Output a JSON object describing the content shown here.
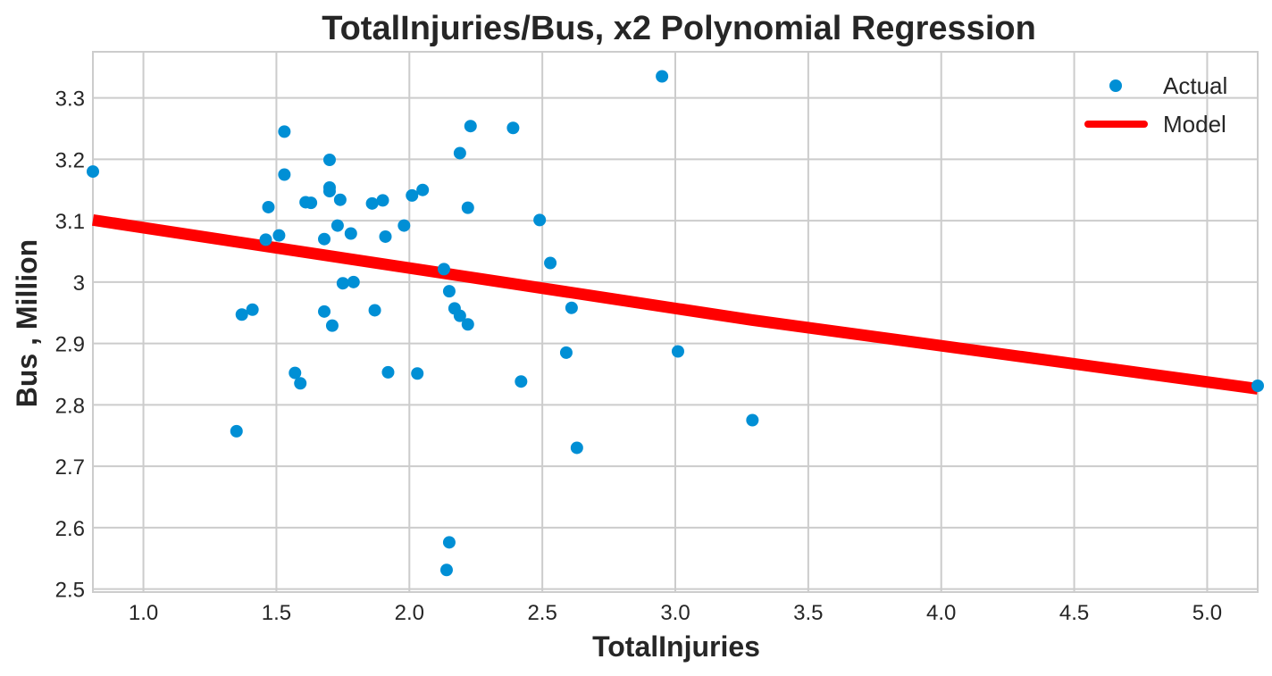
{
  "chart_data": {
    "type": "scatter",
    "title": "TotalInjuries/Bus, x2 Polynomial Regression",
    "xlabel": "TotalInjuries",
    "ylabel": "Bus , Million",
    "xlim": [
      0.81,
      5.19
    ],
    "ylim": [
      2.495,
      3.375
    ],
    "x_ticks": [
      1.0,
      1.5,
      2.0,
      2.5,
      3.0,
      3.5,
      4.0,
      4.5,
      5.0
    ],
    "x_tick_labels": [
      "1.0",
      "1.5",
      "2.0",
      "2.5",
      "3.0",
      "3.5",
      "4.0",
      "4.5",
      "5.0"
    ],
    "y_ticks": [
      2.5,
      2.6,
      2.7,
      2.8,
      2.9,
      3.0,
      3.1,
      3.2,
      3.3
    ],
    "y_tick_labels": [
      "2.5",
      "2.6",
      "2.7",
      "2.8",
      "2.9",
      "3",
      "3.1",
      "3.2",
      "3.3"
    ],
    "grid": true,
    "legend": {
      "position": "top-right",
      "entries": [
        "Actual",
        "Model"
      ]
    },
    "colors": {
      "actual": "#008fd5",
      "model": "#ff0000"
    },
    "series": [
      {
        "name": "Actual",
        "kind": "scatter",
        "points": [
          [
            0.81,
            3.18
          ],
          [
            1.35,
            2.757
          ],
          [
            1.37,
            2.947
          ],
          [
            1.41,
            2.955
          ],
          [
            1.46,
            3.069
          ],
          [
            1.47,
            3.122
          ],
          [
            1.51,
            3.076
          ],
          [
            1.53,
            3.245
          ],
          [
            1.53,
            3.175
          ],
          [
            1.57,
            2.852
          ],
          [
            1.59,
            2.835
          ],
          [
            1.61,
            3.13
          ],
          [
            1.63,
            3.129
          ],
          [
            1.68,
            3.07
          ],
          [
            1.68,
            2.952
          ],
          [
            1.7,
            3.199
          ],
          [
            1.7,
            3.154
          ],
          [
            1.7,
            3.148
          ],
          [
            1.71,
            2.929
          ],
          [
            1.73,
            3.092
          ],
          [
            1.74,
            3.134
          ],
          [
            1.75,
            2.998
          ],
          [
            1.78,
            3.079
          ],
          [
            1.79,
            3.0
          ],
          [
            1.86,
            3.128
          ],
          [
            1.87,
            2.954
          ],
          [
            1.9,
            3.133
          ],
          [
            1.91,
            3.074
          ],
          [
            1.92,
            2.853
          ],
          [
            1.98,
            3.092
          ],
          [
            2.01,
            3.141
          ],
          [
            2.03,
            2.851
          ],
          [
            2.05,
            3.15
          ],
          [
            2.13,
            3.021
          ],
          [
            2.14,
            2.531
          ],
          [
            2.15,
            2.985
          ],
          [
            2.15,
            2.576
          ],
          [
            2.17,
            2.957
          ],
          [
            2.19,
            3.21
          ],
          [
            2.19,
            2.945
          ],
          [
            2.22,
            3.121
          ],
          [
            2.22,
            2.931
          ],
          [
            2.23,
            3.254
          ],
          [
            2.39,
            3.251
          ],
          [
            2.42,
            2.838
          ],
          [
            2.49,
            3.101
          ],
          [
            2.53,
            3.031
          ],
          [
            2.59,
            2.885
          ],
          [
            2.61,
            2.958
          ],
          [
            2.63,
            2.73
          ],
          [
            2.95,
            3.335
          ],
          [
            3.01,
            2.887
          ],
          [
            3.29,
            2.775
          ],
          [
            5.19,
            2.831
          ]
        ]
      },
      {
        "name": "Model",
        "kind": "line",
        "points": [
          [
            0.81,
            3.101
          ],
          [
            3.29,
            2.938
          ],
          [
            5.19,
            2.826
          ]
        ]
      }
    ]
  }
}
